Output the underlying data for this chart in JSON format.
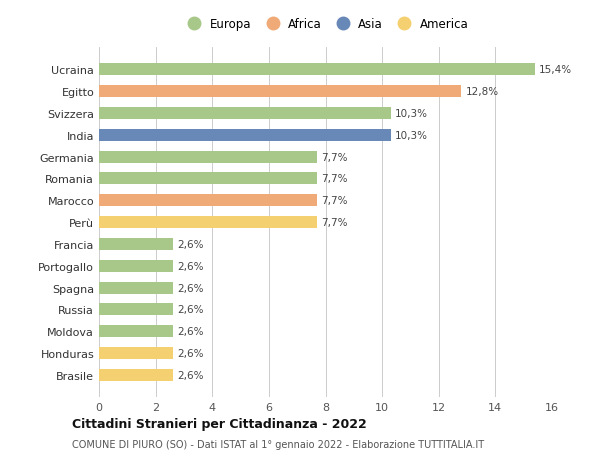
{
  "countries": [
    "Ucraina",
    "Egitto",
    "Svizzera",
    "India",
    "Germania",
    "Romania",
    "Marocco",
    "Perù",
    "Francia",
    "Portogallo",
    "Spagna",
    "Russia",
    "Moldova",
    "Honduras",
    "Brasile"
  ],
  "values": [
    15.4,
    12.8,
    10.3,
    10.3,
    7.7,
    7.7,
    7.7,
    7.7,
    2.6,
    2.6,
    2.6,
    2.6,
    2.6,
    2.6,
    2.6
  ],
  "labels": [
    "15,4%",
    "12,8%",
    "10,3%",
    "10,3%",
    "7,7%",
    "7,7%",
    "7,7%",
    "7,7%",
    "2,6%",
    "2,6%",
    "2,6%",
    "2,6%",
    "2,6%",
    "2,6%",
    "2,6%"
  ],
  "continents": [
    "Europa",
    "Africa",
    "Europa",
    "Asia",
    "Europa",
    "Europa",
    "Africa",
    "America",
    "Europa",
    "Europa",
    "Europa",
    "Europa",
    "Europa",
    "America",
    "America"
  ],
  "colors": {
    "Europa": "#a8c88a",
    "Africa": "#f0aa78",
    "Asia": "#6888b8",
    "America": "#f5d070"
  },
  "legend_order": [
    "Europa",
    "Africa",
    "Asia",
    "America"
  ],
  "title": "Cittadini Stranieri per Cittadinanza - 2022",
  "subtitle": "COMUNE DI PIURO (SO) - Dati ISTAT al 1° gennaio 2022 - Elaborazione TUTTITALIA.IT",
  "xlim": [
    0,
    16
  ],
  "xticks": [
    0,
    2,
    4,
    6,
    8,
    10,
    12,
    14,
    16
  ],
  "background_color": "#ffffff",
  "grid_color": "#cccccc"
}
